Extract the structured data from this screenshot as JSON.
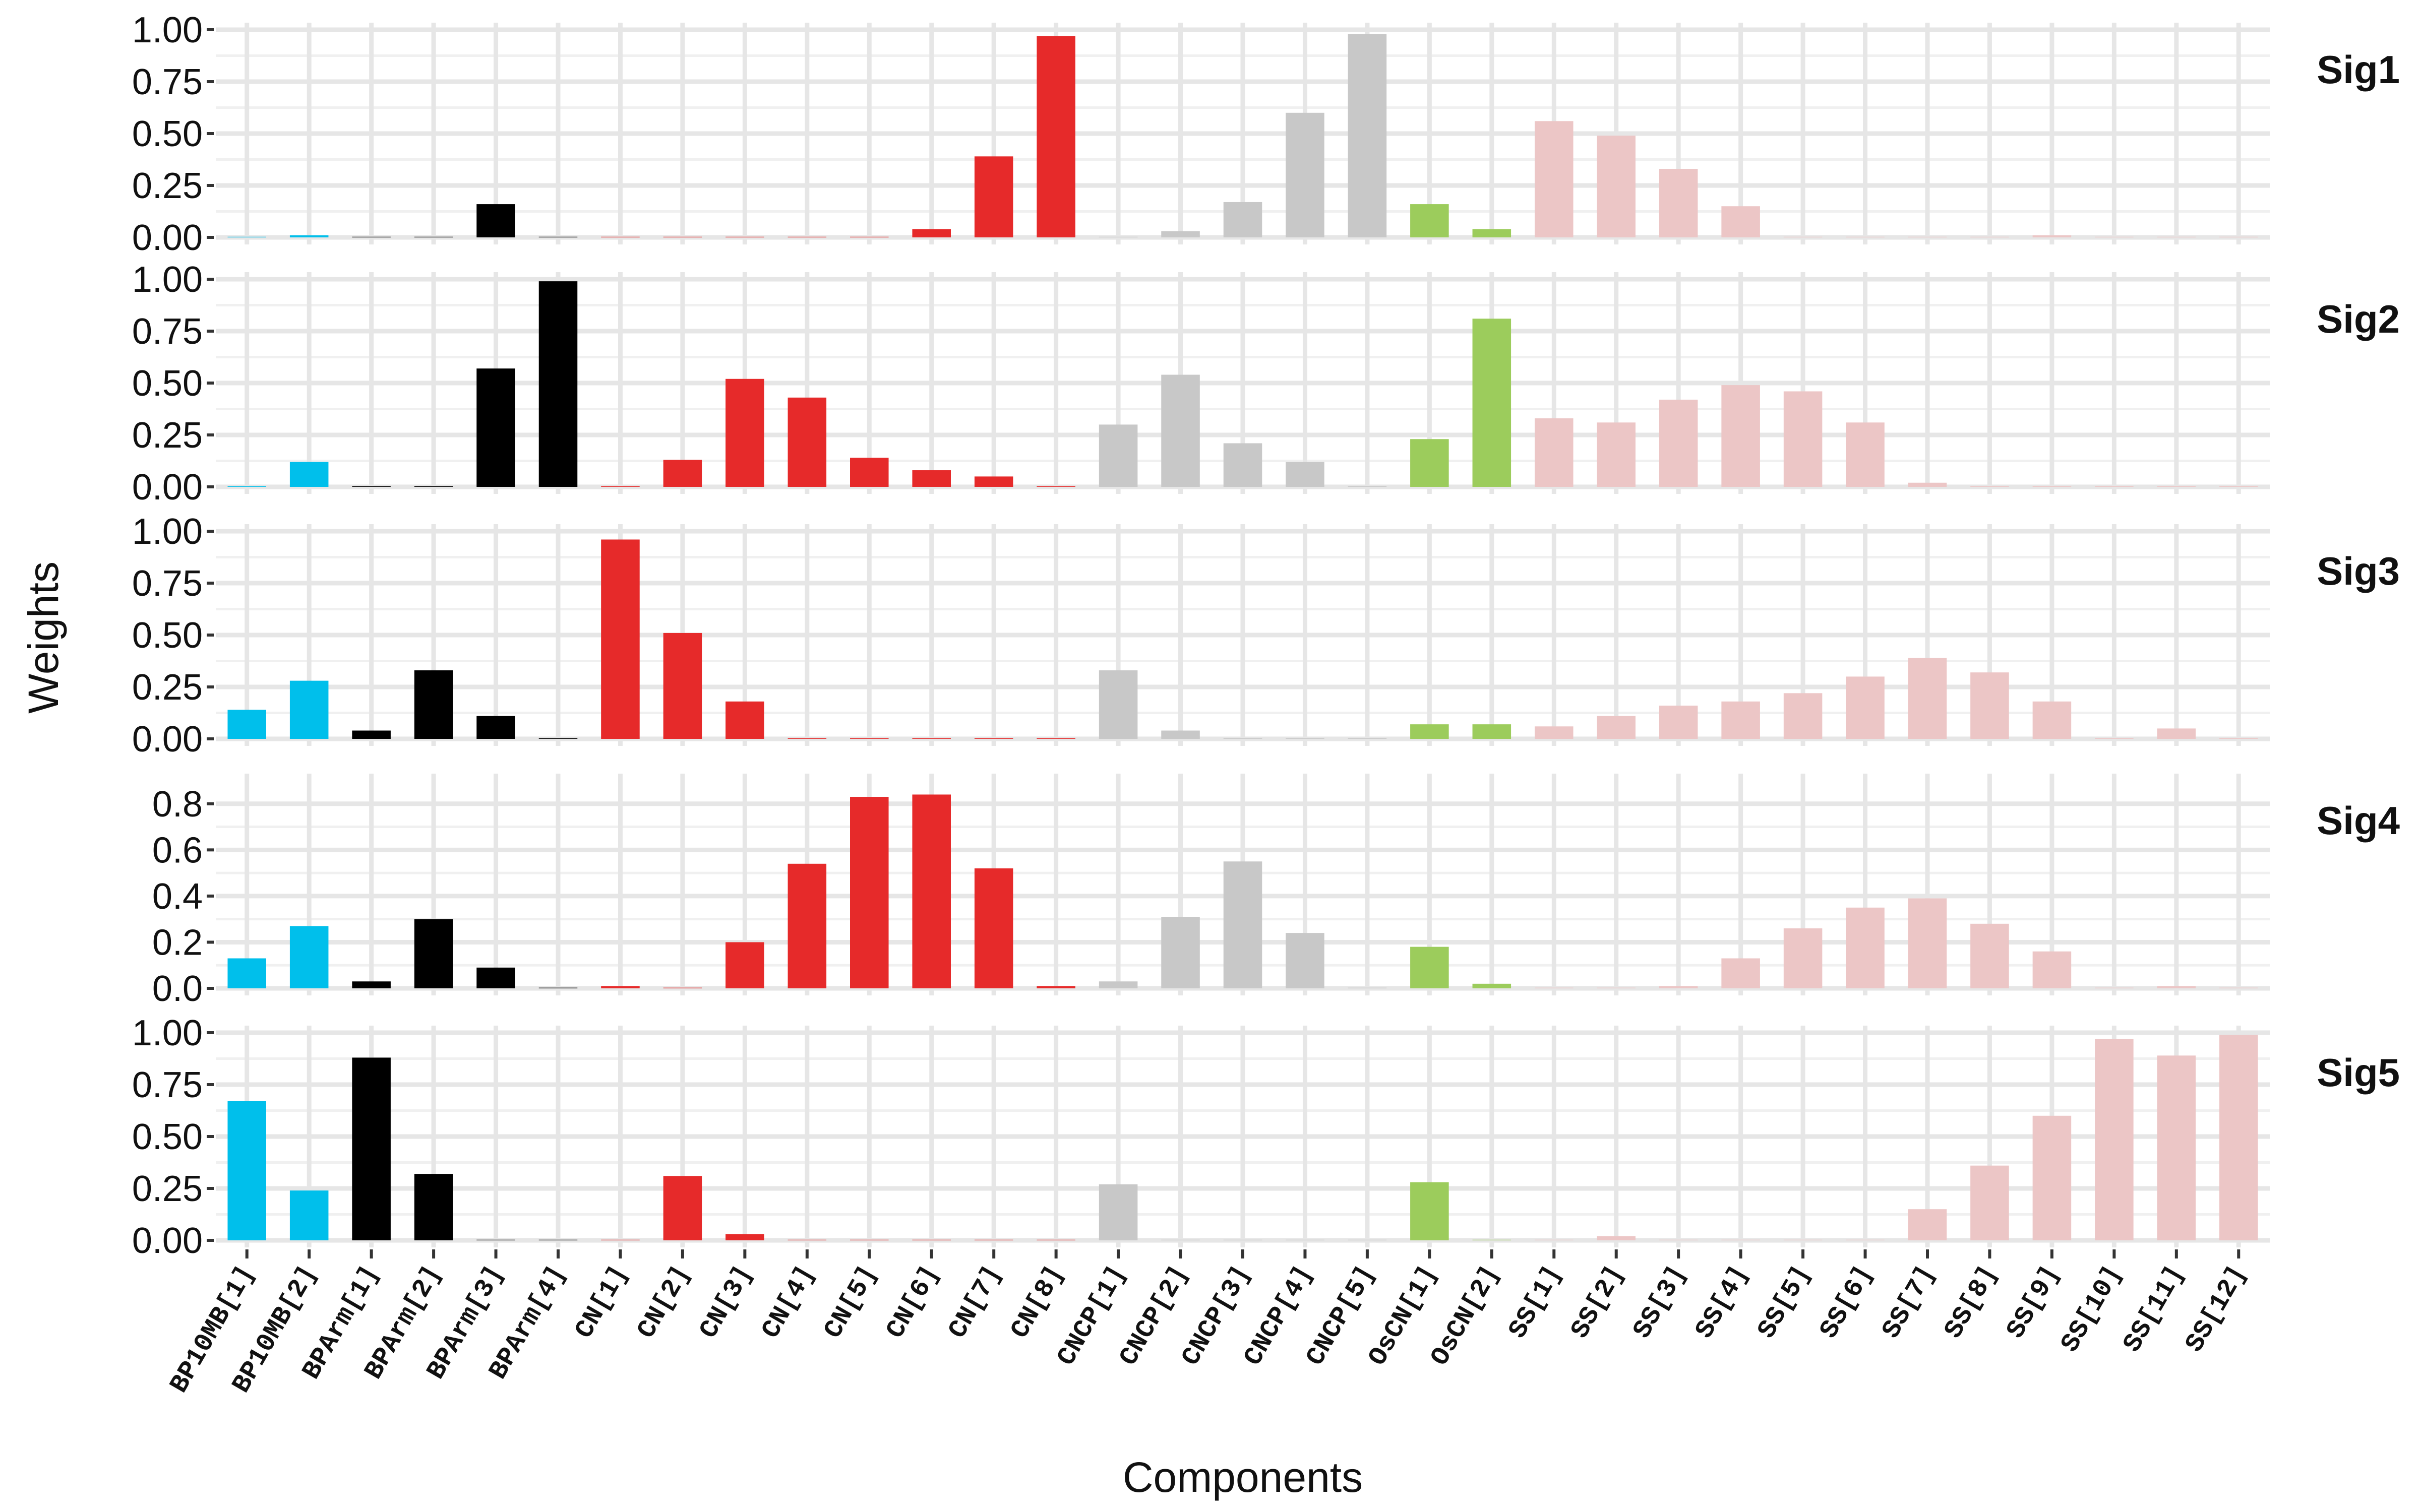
{
  "chart_data": {
    "type": "bar",
    "xlabel": "Components",
    "ylabel": "Weights",
    "categories": [
      "BP10MB[1]",
      "BP10MB[2]",
      "BPArm[1]",
      "BPArm[2]",
      "BPArm[3]",
      "BPArm[4]",
      "CN[1]",
      "CN[2]",
      "CN[3]",
      "CN[4]",
      "CN[5]",
      "CN[6]",
      "CN[7]",
      "CN[8]",
      "CNCP[1]",
      "CNCP[2]",
      "CNCP[3]",
      "CNCP[4]",
      "CNCP[5]",
      "OsCN[1]",
      "OsCN[2]",
      "SS[1]",
      "SS[2]",
      "SS[3]",
      "SS[4]",
      "SS[5]",
      "SS[6]",
      "SS[7]",
      "SS[8]",
      "SS[9]",
      "SS[10]",
      "SS[11]",
      "SS[12]"
    ],
    "category_groups": [
      "BP10MB",
      "BP10MB",
      "BPArm",
      "BPArm",
      "BPArm",
      "BPArm",
      "CN",
      "CN",
      "CN",
      "CN",
      "CN",
      "CN",
      "CN",
      "CN",
      "CNCP",
      "CNCP",
      "CNCP",
      "CNCP",
      "CNCP",
      "OsCN",
      "OsCN",
      "SS",
      "SS",
      "SS",
      "SS",
      "SS",
      "SS",
      "SS",
      "SS",
      "SS",
      "SS",
      "SS",
      "SS"
    ],
    "group_colors": {
      "BP10MB": "#00bfeb",
      "BPArm": "#000000",
      "CN": "#e62a2a",
      "CNCP": "#c8c8c8",
      "OsCN": "#9ccc5c",
      "SS": "#ecc6c6"
    },
    "panels": [
      {
        "label": "Sig1",
        "ylim": [
          0,
          1
        ],
        "yticks": [
          "0.00",
          "0.25",
          "0.50",
          "0.75",
          "1.00"
        ],
        "ytick_values": [
          0,
          0.25,
          0.5,
          0.75,
          1
        ],
        "values": [
          0.003,
          0.01,
          0.003,
          0.003,
          0.16,
          0.003,
          0.003,
          0.003,
          0.003,
          0.003,
          0.003,
          0.04,
          0.39,
          0.97,
          0.003,
          0.03,
          0.17,
          0.6,
          0.98,
          0.16,
          0.04,
          0.56,
          0.49,
          0.33,
          0.15,
          0.003,
          0.003,
          0.003,
          0.003,
          0.01,
          0.003,
          0.003,
          0.003
        ]
      },
      {
        "label": "Sig2",
        "ylim": [
          0,
          1
        ],
        "yticks": [
          "0.00",
          "0.25",
          "0.50",
          "0.75",
          "1.00"
        ],
        "ytick_values": [
          0,
          0.25,
          0.5,
          0.75,
          1
        ],
        "values": [
          0.003,
          0.12,
          0.003,
          0.003,
          0.57,
          0.99,
          0.003,
          0.13,
          0.52,
          0.43,
          0.14,
          0.08,
          0.05,
          0.003,
          0.3,
          0.54,
          0.21,
          0.12,
          0.003,
          0.23,
          0.81,
          0.33,
          0.31,
          0.42,
          0.49,
          0.46,
          0.31,
          0.02,
          0.003,
          0.003,
          0.003,
          0.003,
          0.003
        ]
      },
      {
        "label": "Sig3",
        "ylim": [
          0,
          1
        ],
        "yticks": [
          "0.00",
          "0.25",
          "0.50",
          "0.75",
          "1.00"
        ],
        "ytick_values": [
          0,
          0.25,
          0.5,
          0.75,
          1
        ],
        "values": [
          0.14,
          0.28,
          0.04,
          0.33,
          0.11,
          0.003,
          0.96,
          0.51,
          0.18,
          0.003,
          0.003,
          0.003,
          0.003,
          0.003,
          0.33,
          0.04,
          0.003,
          0.003,
          0.003,
          0.07,
          0.07,
          0.06,
          0.11,
          0.16,
          0.18,
          0.22,
          0.3,
          0.39,
          0.32,
          0.18,
          0.003,
          0.05,
          0.003
        ]
      },
      {
        "label": "Sig4",
        "ylim": [
          0,
          0.9
        ],
        "yticks": [
          "0.0",
          "0.2",
          "0.4",
          "0.6",
          "0.8"
        ],
        "ytick_values": [
          0,
          0.2,
          0.4,
          0.6,
          0.8
        ],
        "values": [
          0.13,
          0.27,
          0.03,
          0.3,
          0.09,
          0.003,
          0.01,
          0.003,
          0.2,
          0.54,
          0.83,
          0.84,
          0.52,
          0.01,
          0.03,
          0.31,
          0.55,
          0.24,
          0.003,
          0.18,
          0.02,
          0.003,
          0.003,
          0.01,
          0.13,
          0.26,
          0.35,
          0.39,
          0.28,
          0.16,
          0.003,
          0.01,
          0.003
        ]
      },
      {
        "label": "Sig5",
        "ylim": [
          0,
          1
        ],
        "yticks": [
          "0.00",
          "0.25",
          "0.50",
          "0.75",
          "1.00"
        ],
        "ytick_values": [
          0,
          0.25,
          0.5,
          0.75,
          1
        ],
        "values": [
          0.67,
          0.24,
          0.88,
          0.32,
          0.003,
          0.003,
          0.003,
          0.31,
          0.03,
          0.003,
          0.003,
          0.003,
          0.003,
          0.003,
          0.27,
          0.003,
          0.003,
          0.003,
          0.003,
          0.28,
          0.003,
          0.003,
          0.02,
          0.003,
          0.003,
          0.003,
          0.003,
          0.15,
          0.36,
          0.6,
          0.97,
          0.89,
          0.99
        ]
      }
    ],
    "grid": true,
    "legend": "none",
    "facet_strip_position": "right"
  }
}
